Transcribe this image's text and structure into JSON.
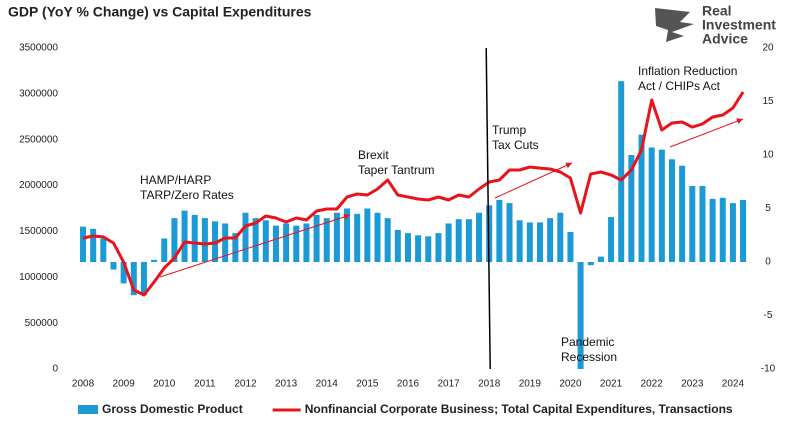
{
  "branding": {
    "lines": [
      "Real",
      "Investment",
      "Advice"
    ]
  },
  "chart_data": {
    "type": "combo",
    "title": "GDP (YoY % Change) vs Capital Expenditures",
    "x": [
      2008,
      2008.25,
      2008.5,
      2008.75,
      2009,
      2009.25,
      2009.5,
      2009.75,
      2010,
      2010.25,
      2010.5,
      2010.75,
      2011,
      2011.25,
      2011.5,
      2011.75,
      2012,
      2012.25,
      2012.5,
      2012.75,
      2013,
      2013.25,
      2013.5,
      2013.75,
      2014,
      2014.25,
      2014.5,
      2014.75,
      2015,
      2015.25,
      2015.5,
      2015.75,
      2016,
      2016.25,
      2016.5,
      2016.75,
      2017,
      2017.25,
      2017.5,
      2017.75,
      2018,
      2018.25,
      2018.5,
      2018.75,
      2019,
      2019.25,
      2019.5,
      2019.75,
      2020,
      2020.25,
      2020.5,
      2020.75,
      2021,
      2021.25,
      2021.5,
      2021.75,
      2022,
      2022.25,
      2022.5,
      2022.75,
      2023,
      2023.25,
      2023.5,
      2023.75,
      2024,
      2024.25
    ],
    "series": [
      {
        "name": "Gross Domestic Product",
        "type": "bar",
        "axis": "y2",
        "color": "#1b9ad6",
        "values": [
          3.3,
          3.1,
          2.2,
          -0.7,
          -2.0,
          -3.1,
          -3.1,
          0.2,
          2.2,
          4.1,
          4.8,
          4.4,
          4.1,
          3.8,
          3.6,
          2.7,
          4.6,
          4.1,
          3.9,
          3.4,
          3.6,
          3.4,
          3.6,
          4.4,
          4.1,
          4.6,
          5.0,
          4.5,
          5.0,
          4.6,
          4.1,
          3.0,
          2.7,
          2.5,
          2.4,
          2.7,
          3.6,
          4.0,
          4.0,
          4.6,
          5.3,
          5.8,
          5.5,
          3.9,
          3.7,
          3.7,
          4.1,
          4.6,
          2.8,
          -10.0,
          -0.3,
          0.5,
          4.2,
          16.9,
          10.0,
          11.9,
          10.7,
          10.5,
          9.6,
          9.0,
          7.1,
          7.1,
          5.9,
          6.0,
          5.5,
          5.8
        ]
      },
      {
        "name": "Nonfinancial Corporate Business; Total Capital Expenditures, Transactions",
        "type": "line",
        "axis": "y",
        "color": "#e8141b",
        "values": [
          1428000,
          1450000,
          1440000,
          1374000,
          1167000,
          861000,
          807000,
          949000,
          1101000,
          1210000,
          1385000,
          1374000,
          1363000,
          1374000,
          1428000,
          1428000,
          1559000,
          1592000,
          1668000,
          1646000,
          1603000,
          1646000,
          1625000,
          1723000,
          1745000,
          1745000,
          1875000,
          1908000,
          1897000,
          1963000,
          2061000,
          1897000,
          1875000,
          1854000,
          1843000,
          1875000,
          1843000,
          1897000,
          1875000,
          1963000,
          2039000,
          2061000,
          2170000,
          2170000,
          2202000,
          2191000,
          2181000,
          2148000,
          2083000,
          1701000,
          2126000,
          2148000,
          2115000,
          2061000,
          2170000,
          2388000,
          2933000,
          2606000,
          2682000,
          2693000,
          2638000,
          2671000,
          2748000,
          2769000,
          2846000,
          3020000
        ]
      }
    ],
    "xlim": [
      2007.63,
      2024.47
    ],
    "xticks": [
      2008,
      2009,
      2010,
      2011,
      2012,
      2013,
      2014,
      2015,
      2016,
      2017,
      2018,
      2019,
      2020,
      2021,
      2022,
      2023,
      2024
    ],
    "ylim": [
      0,
      3500000
    ],
    "yticks": [
      0,
      500000,
      1000000,
      1500000,
      2000000,
      2500000,
      3000000,
      3500000
    ],
    "y2lim": [
      -10,
      20
    ],
    "y2ticks": [
      -10,
      -5,
      0,
      5,
      10,
      15,
      20
    ],
    "vline": 2018,
    "annotations": [
      [
        "HAMP/HARP",
        "TARP/Zero Rates"
      ],
      [
        "Brexit",
        "Taper Tantrum"
      ],
      [
        "Trump",
        "Tax Cuts"
      ],
      [
        "Pandemic",
        "Recession"
      ],
      [
        "Inflation Reduction",
        "Act / CHIPs Act"
      ]
    ],
    "legend": "bottom"
  }
}
